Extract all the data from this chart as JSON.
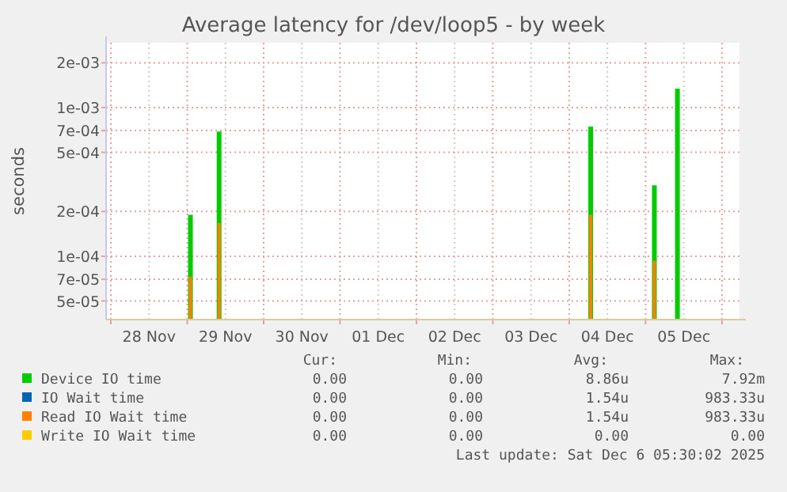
{
  "chart_data": {
    "type": "bar",
    "title": "Average latency for /dev/loop5 - by week",
    "ylabel": "seconds",
    "log": "y",
    "grid": true,
    "legend": "bottom",
    "x": [
      "2025-11-29T01:00",
      "2025-11-29T10:00",
      "2025-12-04T06:45",
      "2025-12-05T02:45",
      "2025-12-05T10:00"
    ],
    "xlim": [
      "2025-11-27T22:30",
      "2025-12-06T05:30"
    ],
    "xticks": [
      {
        "value": "2025-11-28T00:00",
        "label": null
      },
      {
        "value": "2025-11-28T12:00",
        "label": "28 Nov"
      },
      {
        "value": "2025-11-29T00:00",
        "label": null
      },
      {
        "value": "2025-11-29T12:00",
        "label": "29 Nov"
      },
      {
        "value": "2025-11-30T00:00",
        "label": null
      },
      {
        "value": "2025-11-30T12:00",
        "label": "30 Nov"
      },
      {
        "value": "2025-12-01T00:00",
        "label": null
      },
      {
        "value": "2025-12-01T12:00",
        "label": "01 Dec"
      },
      {
        "value": "2025-12-02T00:00",
        "label": null
      },
      {
        "value": "2025-12-02T12:00",
        "label": "02 Dec"
      },
      {
        "value": "2025-12-03T00:00",
        "label": null
      },
      {
        "value": "2025-12-03T12:00",
        "label": "03 Dec"
      },
      {
        "value": "2025-12-04T00:00",
        "label": null
      },
      {
        "value": "2025-12-04T12:00",
        "label": "04 Dec"
      },
      {
        "value": "2025-12-05T00:00",
        "label": null
      },
      {
        "value": "2025-12-05T12:00",
        "label": "05 Dec"
      },
      {
        "value": "2025-12-06T00:00",
        "label": null
      }
    ],
    "ylim": [
      3.75e-05,
      0.00273
    ],
    "yticks": [
      {
        "value": 5e-05,
        "label": "5e-05"
      },
      {
        "value": 7e-05,
        "label": "7e-05"
      },
      {
        "value": 0.0001,
        "label": "1e-04"
      },
      {
        "value": 0.0002,
        "label": "2e-04"
      },
      {
        "value": 0.0005,
        "label": "5e-04"
      },
      {
        "value": 0.0007,
        "label": "7e-04"
      },
      {
        "value": 0.001,
        "label": "1e-03"
      },
      {
        "value": 0.002,
        "label": "2e-03"
      }
    ],
    "series": [
      {
        "name": "Device IO time",
        "color": "#00cc00",
        "values": [
          0.00019,
          0.00069,
          0.000745,
          0.0003,
          0.00134
        ]
      },
      {
        "name": "IO Wait time",
        "color": "#0066b3",
        "values": [
          null,
          null,
          null,
          null,
          null
        ]
      },
      {
        "name": "Read IO Wait time",
        "color": "#ff8000",
        "values": [
          7.3e-05,
          0.000167,
          0.00019,
          9.3e-05,
          null
        ]
      },
      {
        "name": "Write IO Wait time",
        "color": "#ffcc00",
        "values": [
          null,
          null,
          null,
          null,
          null
        ]
      }
    ],
    "annotations": [
      "Cur:",
      "Min:",
      "Avg:",
      "Max:",
      "0.00",
      "0.00",
      "8.86u",
      "7.92m",
      "0.00",
      "0.00",
      "1.54u",
      "983.33u",
      "0.00",
      "0.00",
      "1.54u",
      "983.33u",
      "0.00",
      "0.00",
      "0.00",
      "0.00",
      "Last update: Sat Dec  6 05:30:02 2025"
    ]
  }
}
